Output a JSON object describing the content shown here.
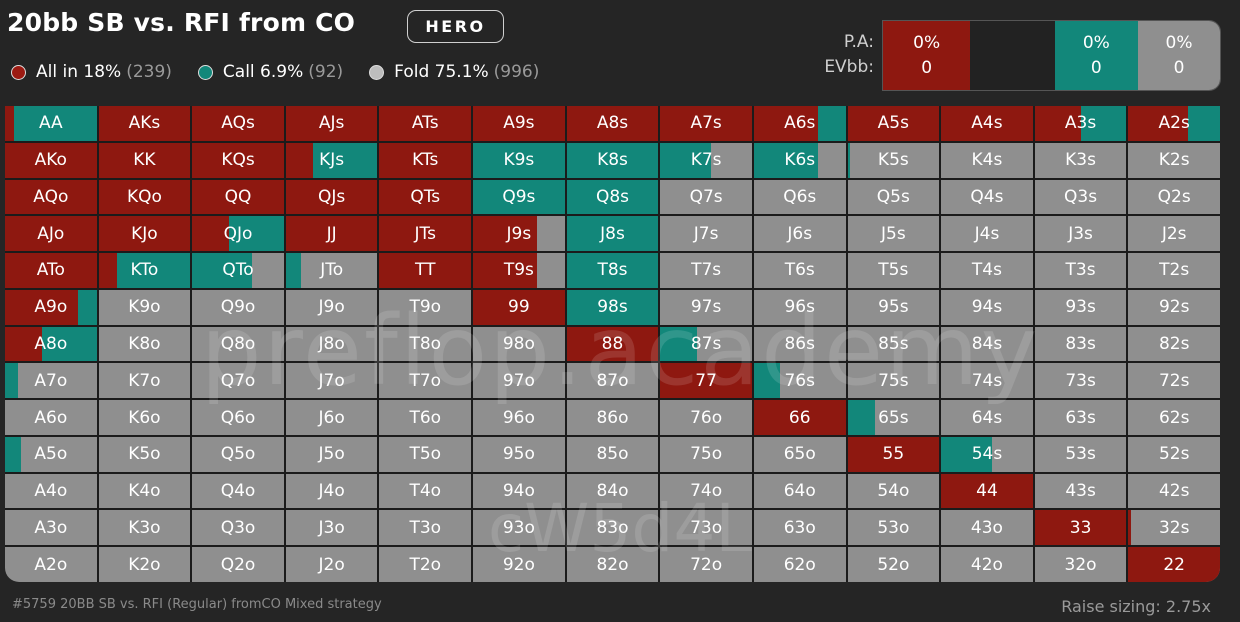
{
  "header": {
    "title": "20bb SB vs. RFI from CO",
    "badge": "HERO"
  },
  "legend": [
    {
      "name": "All in",
      "pct": "18%",
      "count": "(239)",
      "color": "#9c1a12"
    },
    {
      "name": "Call",
      "pct": "6.9%",
      "count": "(92)",
      "color": "#12877a"
    },
    {
      "name": "Fold",
      "pct": "75.1%",
      "count": "(996)",
      "color": "#bdbdbd"
    }
  ],
  "pa": {
    "label_pa": "P.A:",
    "label_ev": "EVbb:",
    "segments": [
      {
        "pct": "0%",
        "ev": "0",
        "color": "#8e1810",
        "width": 0.259
      },
      {
        "pct": "",
        "ev": "",
        "color": "#222222",
        "width": 0.25
      },
      {
        "pct": "0%",
        "ev": "0",
        "color": "#12877a",
        "width": 0.248
      },
      {
        "pct": "0%",
        "ev": "0",
        "color": "#8f8f8f",
        "width": 0.243
      }
    ]
  },
  "colors": {
    "allin": "#8e1810",
    "call": "#12877a",
    "fold": "#8f8f8f"
  },
  "grid": {
    "cells": [
      [
        "AA",
        "AKs",
        "AQs",
        "AJs",
        "ATs",
        "A9s",
        "A8s",
        "A7s",
        "A6s",
        "A5s",
        "A4s",
        "A3s",
        "A2s"
      ],
      [
        "AKo",
        "KK",
        "KQs",
        "KJs",
        "KTs",
        "K9s",
        "K8s",
        "K7s",
        "K6s",
        "K5s",
        "K4s",
        "K3s",
        "K2s"
      ],
      [
        "AQo",
        "KQo",
        "QQ",
        "QJs",
        "QTs",
        "Q9s",
        "Q8s",
        "Q7s",
        "Q6s",
        "Q5s",
        "Q4s",
        "Q3s",
        "Q2s"
      ],
      [
        "AJo",
        "KJo",
        "QJo",
        "JJ",
        "JTs",
        "J9s",
        "J8s",
        "J7s",
        "J6s",
        "J5s",
        "J4s",
        "J3s",
        "J2s"
      ],
      [
        "ATo",
        "KTo",
        "QTo",
        "JTo",
        "TT",
        "T9s",
        "T8s",
        "T7s",
        "T6s",
        "T5s",
        "T4s",
        "T3s",
        "T2s"
      ],
      [
        "A9o",
        "K9o",
        "Q9o",
        "J9o",
        "T9o",
        "99",
        "98s",
        "97s",
        "96s",
        "95s",
        "94s",
        "93s",
        "92s"
      ],
      [
        "A8o",
        "K8o",
        "Q8o",
        "J8o",
        "T8o",
        "98o",
        "88",
        "87s",
        "86s",
        "85s",
        "84s",
        "83s",
        "82s"
      ],
      [
        "A7o",
        "K7o",
        "Q7o",
        "J7o",
        "T7o",
        "97o",
        "87o",
        "77",
        "76s",
        "75s",
        "74s",
        "73s",
        "72s"
      ],
      [
        "A6o",
        "K6o",
        "Q6o",
        "J6o",
        "T6o",
        "96o",
        "86o",
        "76o",
        "66",
        "65s",
        "64s",
        "63s",
        "62s"
      ],
      [
        "A5o",
        "K5o",
        "Q5o",
        "J5o",
        "T5o",
        "95o",
        "85o",
        "75o",
        "65o",
        "55",
        "54s",
        "53s",
        "52s"
      ],
      [
        "A4o",
        "K4o",
        "Q4o",
        "J4o",
        "T4o",
        "94o",
        "84o",
        "74o",
        "64o",
        "54o",
        "44",
        "43s",
        "42s"
      ],
      [
        "A3o",
        "K3o",
        "Q3o",
        "J3o",
        "T3o",
        "93o",
        "83o",
        "73o",
        "63o",
        "53o",
        "43o",
        "33",
        "32s"
      ],
      [
        "A2o",
        "K2o",
        "Q2o",
        "J2o",
        "T2o",
        "92o",
        "82o",
        "72o",
        "62o",
        "52o",
        "42o",
        "32o",
        "22"
      ]
    ],
    "strategy": [
      [
        [
          0.1,
          0.9
        ],
        [
          1,
          0
        ],
        [
          1,
          0
        ],
        [
          1,
          0
        ],
        [
          1,
          0
        ],
        [
          1,
          0
        ],
        [
          1,
          0
        ],
        [
          1,
          0
        ],
        [
          0.7,
          0.3
        ],
        [
          1,
          0
        ],
        [
          1,
          0
        ],
        [
          0.5,
          0.5
        ],
        [
          0.65,
          0.35
        ]
      ],
      [
        [
          1,
          0
        ],
        [
          1,
          0
        ],
        [
          1,
          0
        ],
        [
          0.3,
          0.7
        ],
        [
          1,
          0
        ],
        [
          0,
          1
        ],
        [
          0,
          1
        ],
        [
          0,
          0.55
        ],
        [
          0,
          0.7
        ],
        [
          0,
          0.03
        ],
        [
          0,
          0
        ],
        [
          0,
          0
        ],
        [
          0,
          0
        ]
      ],
      [
        [
          1,
          0
        ],
        [
          1,
          0
        ],
        [
          1,
          0
        ],
        [
          1,
          0
        ],
        [
          1,
          0
        ],
        [
          0,
          1
        ],
        [
          0,
          1
        ],
        [
          0,
          0
        ],
        [
          0,
          0
        ],
        [
          0,
          0
        ],
        [
          0,
          0
        ],
        [
          0,
          0
        ],
        [
          0,
          0
        ]
      ],
      [
        [
          1,
          0
        ],
        [
          1,
          0
        ],
        [
          0.4,
          0.6
        ],
        [
          1,
          0
        ],
        [
          1,
          0
        ],
        [
          0.7,
          0
        ],
        [
          0,
          1
        ],
        [
          0,
          0
        ],
        [
          0,
          0
        ],
        [
          0,
          0
        ],
        [
          0,
          0
        ],
        [
          0,
          0
        ],
        [
          0,
          0
        ]
      ],
      [
        [
          1,
          0
        ],
        [
          0.2,
          0.8
        ],
        [
          0,
          0.65
        ],
        [
          0,
          0.17
        ],
        [
          1,
          0
        ],
        [
          0.7,
          0
        ],
        [
          0,
          1
        ],
        [
          0,
          0
        ],
        [
          0,
          0
        ],
        [
          0,
          0
        ],
        [
          0,
          0
        ],
        [
          0,
          0
        ],
        [
          0,
          0
        ]
      ],
      [
        [
          0.8,
          0.2
        ],
        [
          0,
          0
        ],
        [
          0,
          0
        ],
        [
          0,
          0
        ],
        [
          0,
          0
        ],
        [
          1,
          0
        ],
        [
          0,
          1
        ],
        [
          0,
          0
        ],
        [
          0,
          0
        ],
        [
          0,
          0
        ],
        [
          0,
          0
        ],
        [
          0,
          0
        ],
        [
          0,
          0
        ]
      ],
      [
        [
          0.4,
          0.6
        ],
        [
          0,
          0
        ],
        [
          0,
          0
        ],
        [
          0,
          0
        ],
        [
          0,
          0
        ],
        [
          0,
          0
        ],
        [
          1,
          0
        ],
        [
          0,
          0.4
        ],
        [
          0,
          0
        ],
        [
          0,
          0
        ],
        [
          0,
          0
        ],
        [
          0,
          0
        ],
        [
          0,
          0
        ]
      ],
      [
        [
          0,
          0.14
        ],
        [
          0,
          0
        ],
        [
          0,
          0
        ],
        [
          0,
          0
        ],
        [
          0,
          0
        ],
        [
          0,
          0
        ],
        [
          0,
          0
        ],
        [
          1,
          0
        ],
        [
          0,
          0.28
        ],
        [
          0,
          0
        ],
        [
          0,
          0
        ],
        [
          0,
          0
        ],
        [
          0,
          0
        ]
      ],
      [
        [
          0,
          0
        ],
        [
          0,
          0
        ],
        [
          0,
          0
        ],
        [
          0,
          0
        ],
        [
          0,
          0
        ],
        [
          0,
          0
        ],
        [
          0,
          0
        ],
        [
          0,
          0
        ],
        [
          1,
          0
        ],
        [
          0,
          0.3
        ],
        [
          0,
          0
        ],
        [
          0,
          0
        ],
        [
          0,
          0
        ]
      ],
      [
        [
          0,
          0.17
        ],
        [
          0,
          0
        ],
        [
          0,
          0
        ],
        [
          0,
          0
        ],
        [
          0,
          0
        ],
        [
          0,
          0
        ],
        [
          0,
          0
        ],
        [
          0,
          0
        ],
        [
          0,
          0
        ],
        [
          1,
          0
        ],
        [
          0,
          0.55
        ],
        [
          0,
          0
        ],
        [
          0,
          0
        ]
      ],
      [
        [
          0,
          0
        ],
        [
          0,
          0
        ],
        [
          0,
          0
        ],
        [
          0,
          0
        ],
        [
          0,
          0
        ],
        [
          0,
          0
        ],
        [
          0,
          0
        ],
        [
          0,
          0
        ],
        [
          0,
          0
        ],
        [
          0,
          0
        ],
        [
          1,
          0
        ],
        [
          0,
          0
        ],
        [
          0,
          0
        ]
      ],
      [
        [
          0,
          0
        ],
        [
          0,
          0
        ],
        [
          0,
          0
        ],
        [
          0,
          0
        ],
        [
          0,
          0
        ],
        [
          0,
          0
        ],
        [
          0,
          0
        ],
        [
          0,
          0
        ],
        [
          0,
          0
        ],
        [
          0,
          0
        ],
        [
          0,
          0
        ],
        [
          1,
          0
        ],
        [
          0.03,
          0
        ]
      ],
      [
        [
          0,
          0
        ],
        [
          0,
          0
        ],
        [
          0,
          0
        ],
        [
          0,
          0
        ],
        [
          0,
          0
        ],
        [
          0,
          0
        ],
        [
          0,
          0
        ],
        [
          0,
          0
        ],
        [
          0,
          0
        ],
        [
          0,
          0
        ],
        [
          0,
          0
        ],
        [
          0,
          0
        ],
        [
          1,
          0
        ]
      ]
    ]
  },
  "watermark": {
    "line1": "preflop.academy",
    "line2": "cW5d4L"
  },
  "footer": {
    "left": "#5759 20BB SB vs. RFI (Regular) fromCO Mixed strategy",
    "right": "Raise sizing: 2.75x"
  }
}
